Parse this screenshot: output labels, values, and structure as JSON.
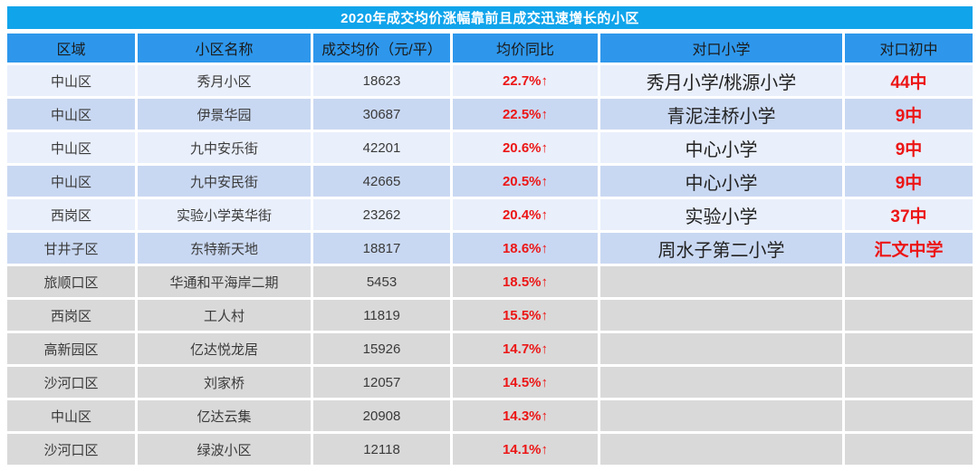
{
  "title": "2020年成交均价涨幅靠前且成交迅速增长的小区",
  "colors": {
    "title_bg": "#10A4EB",
    "header_bg": "#2E97EC",
    "band_light_blue": "#E9EFFB",
    "band_blue": "#C9D8F2",
    "band_gray": "#D9D9D9",
    "accent_red": "#EC1515"
  },
  "chart_data": {
    "type": "table",
    "title": "2020年成交均价涨幅靠前且成交迅速增长的小区",
    "columns": [
      "区域",
      "小区名称",
      "成交均价（元/平）",
      "均价同比",
      "对口小学",
      "对口初中"
    ],
    "rows": [
      [
        "中山区",
        "秀月小区",
        "18623",
        "22.7%↑",
        "秀月小学/桃源小学",
        "44中"
      ],
      [
        "中山区",
        "伊景华园",
        "30687",
        "22.5%↑",
        "青泥洼桥小学",
        "9中"
      ],
      [
        "中山区",
        "九中安乐街",
        "42201",
        "20.6%↑",
        "中心小学",
        "9中"
      ],
      [
        "中山区",
        "九中安民街",
        "42665",
        "20.5%↑",
        "中心小学",
        "9中"
      ],
      [
        "西岗区",
        "实验小学英华街",
        "23262",
        "20.4%↑",
        "实验小学",
        "37中"
      ],
      [
        "甘井子区",
        "东特新天地",
        "18817",
        "18.6%↑",
        "周水子第二小学",
        "汇文中学"
      ],
      [
        "旅顺口区",
        "华通和平海岸二期",
        "5453",
        "18.5%↑",
        "",
        ""
      ],
      [
        "西岗区",
        "工人村",
        "11819",
        "15.5%↑",
        "",
        ""
      ],
      [
        "高新园区",
        "亿达悦龙居",
        "15926",
        "14.7%↑",
        "",
        ""
      ],
      [
        "沙河口区",
        "刘家桥",
        "12057",
        "14.5%↑",
        "",
        ""
      ],
      [
        "中山区",
        "亿达云集",
        "20908",
        "14.3%↑",
        "",
        ""
      ],
      [
        "沙河口区",
        "绿波小区",
        "12118",
        "14.1%↑",
        "",
        ""
      ]
    ]
  }
}
